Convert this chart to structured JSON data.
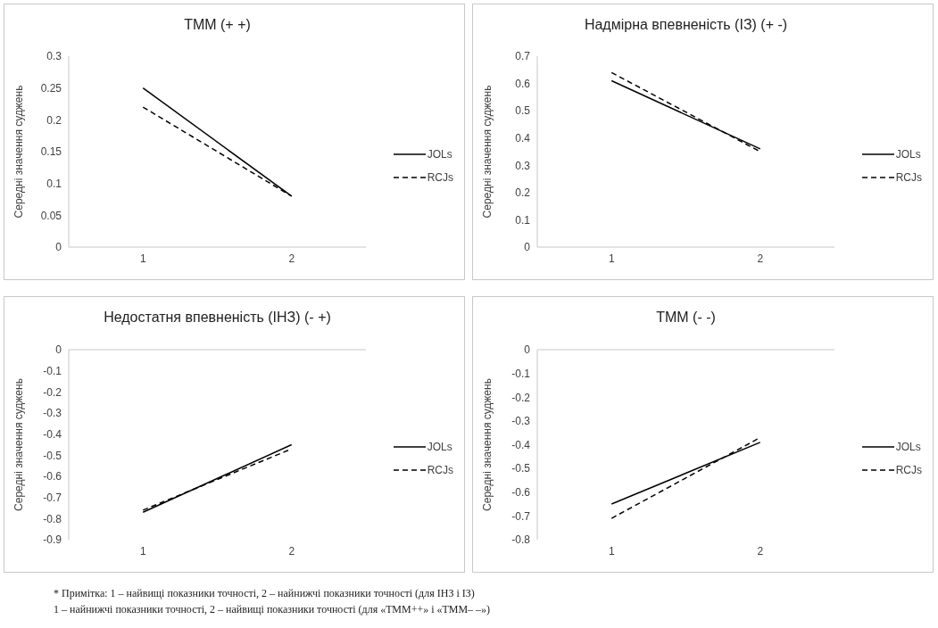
{
  "chart_data": [
    {
      "type": "line",
      "title": "ТММ (+ +)",
      "ylabel": "Середні значення суджень",
      "categories": [
        "1",
        "2"
      ],
      "ylim": [
        0,
        0.3
      ],
      "yticks": [
        0,
        0.05,
        0.1,
        0.15,
        0.2,
        0.25,
        0.3
      ],
      "legend": "right",
      "marker": "none",
      "grid": false,
      "series": [
        {
          "name": "JOLs",
          "color": "#000000",
          "line_style": "solid",
          "values": [
            0.25,
            0.08
          ]
        },
        {
          "name": "RCJs",
          "color": "#000000",
          "line_style": "dashed",
          "values": [
            0.22,
            0.08
          ]
        }
      ]
    },
    {
      "type": "line",
      "title": "Надмірна впевненість (ІЗ) (+ -)",
      "ylabel": "Середні значення суджень",
      "categories": [
        "1",
        "2"
      ],
      "ylim": [
        0,
        0.7
      ],
      "yticks": [
        0,
        0.1,
        0.2,
        0.3,
        0.4,
        0.5,
        0.6,
        0.7
      ],
      "legend": "right",
      "marker": "none",
      "grid": false,
      "series": [
        {
          "name": "JOLs",
          "color": "#000000",
          "line_style": "solid",
          "values": [
            0.61,
            0.36
          ]
        },
        {
          "name": "RCJs",
          "color": "#000000",
          "line_style": "dashed",
          "values": [
            0.64,
            0.35
          ]
        }
      ]
    },
    {
      "type": "line",
      "title": "Недостатня впевненість (ІНЗ) (- +)",
      "ylabel": "Середні значення суджень",
      "categories": [
        "1",
        "2"
      ],
      "ylim": [
        -0.9,
        0
      ],
      "yticks": [
        -0.9,
        -0.8,
        -0.7,
        -0.6,
        -0.5,
        -0.4,
        -0.3,
        -0.2,
        -0.1,
        0
      ],
      "legend": "right",
      "marker": "none",
      "grid": false,
      "series": [
        {
          "name": "JOLs",
          "color": "#000000",
          "line_style": "solid",
          "values": [
            -0.77,
            -0.45
          ]
        },
        {
          "name": "RCJs",
          "color": "#000000",
          "line_style": "dashed",
          "values": [
            -0.76,
            -0.47
          ]
        }
      ]
    },
    {
      "type": "line",
      "title": "ТММ (- -)",
      "ylabel": "Середні значення суджень",
      "categories": [
        "1",
        "2"
      ],
      "ylim": [
        -0.8,
        0
      ],
      "yticks": [
        -0.8,
        -0.7,
        -0.6,
        -0.5,
        -0.4,
        -0.3,
        -0.2,
        -0.1,
        0
      ],
      "legend": "right",
      "marker": "none",
      "grid": false,
      "series": [
        {
          "name": "JOLs",
          "color": "#000000",
          "line_style": "solid",
          "values": [
            -0.65,
            -0.39
          ]
        },
        {
          "name": "RCJs",
          "color": "#000000",
          "line_style": "dashed",
          "values": [
            -0.71,
            -0.37
          ]
        }
      ],
      "annotations": [
        "* Примітка: 1 – найвищі показники точності, 2 – найнижчі показники точності (для ІНЗ і ІЗ)",
        "1 – найнижчі показники точності, 2 – найвищі показники точності (для «ТММ++» і «ТММ– –»)"
      ]
    }
  ]
}
